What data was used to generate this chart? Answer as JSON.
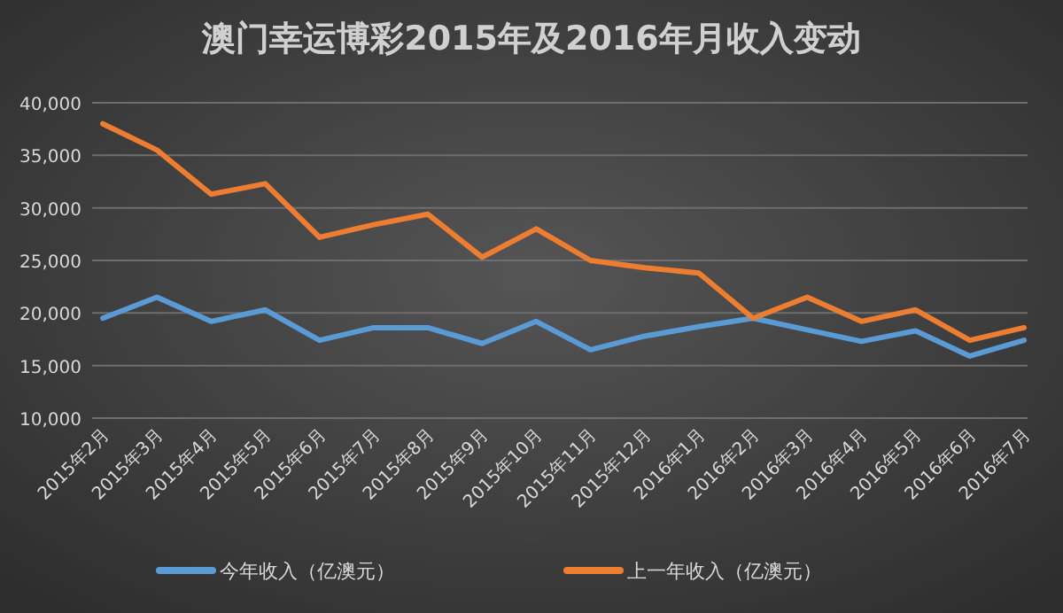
{
  "chart_data": {
    "type": "line",
    "title": "澳门幸运博彩2015年及2016年月收入变动",
    "categories": [
      "2015年2月",
      "2015年3月",
      "2015年4月",
      "2015年5月",
      "2015年6月",
      "2015年7月",
      "2015年8月",
      "2015年9月",
      "2015年10月",
      "2015年11月",
      "2015年12月",
      "2016年1月",
      "2016年2月",
      "2016年3月",
      "2016年4月",
      "2016年5月",
      "2016年6月",
      "2016年7月"
    ],
    "series": [
      {
        "name": "今年收入（亿澳元）",
        "color": "#5b9bd5",
        "values": [
          19500,
          21500,
          19200,
          20300,
          17400,
          18600,
          18600,
          17100,
          19200,
          16500,
          17800,
          18700,
          19500,
          18400,
          17300,
          18300,
          15900,
          17400
        ]
      },
      {
        "name": "上一年收入（亿澳元）",
        "color": "#ed7d31",
        "values": [
          38000,
          35500,
          31300,
          32300,
          27200,
          28400,
          29400,
          25300,
          28000,
          25000,
          24300,
          23800,
          19500,
          21500,
          19200,
          20300,
          17400,
          18600
        ]
      }
    ],
    "ylim": [
      10000,
      40000
    ],
    "yticks": [
      {
        "value": 10000,
        "label": "10,000"
      },
      {
        "value": 15000,
        "label": "15,000"
      },
      {
        "value": 20000,
        "label": "20,000"
      },
      {
        "value": 25000,
        "label": "25,000"
      },
      {
        "value": 30000,
        "label": "30,000"
      },
      {
        "value": 35000,
        "label": "35,000"
      },
      {
        "value": 40000,
        "label": "40,000"
      }
    ],
    "grid": "y",
    "legend": "bottom",
    "marker": "none",
    "line_style": "solid"
  }
}
